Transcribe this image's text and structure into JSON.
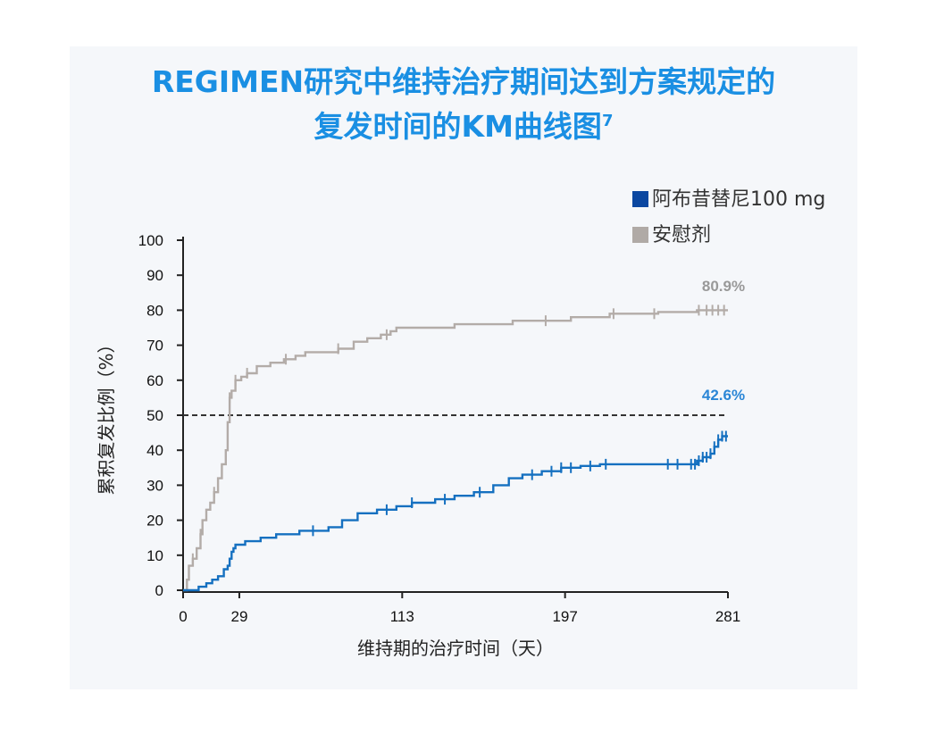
{
  "title": {
    "line1": "REGIMEN研究中维持治疗期间达到方案规定的",
    "line2": "复发时间的KM曲线图",
    "superscript": "7"
  },
  "colors": {
    "accent": "#1a8fe3",
    "series_active": "#1570c0",
    "series_placebo": "#b3aca8",
    "legend_active": "#0b47a1",
    "legend_placebo": "#b0aaa6",
    "placebo_label": "#999999",
    "active_label": "#2a86d6"
  },
  "chart_data": {
    "type": "line",
    "title": "REGIMEN研究中维持治疗期间达到方案规定的复发时间的KM曲线图",
    "xlabel": "维持期的治疗时间（天）",
    "ylabel": "累积复发比例（%）",
    "xlim": [
      0,
      281
    ],
    "ylim": [
      0,
      100
    ],
    "xticks": [
      0,
      29,
      113,
      197,
      281
    ],
    "xtick_labels": [
      "0",
      "29",
      "113",
      "197",
      "281"
    ],
    "yticks": [
      0,
      10,
      20,
      30,
      40,
      50,
      60,
      70,
      80,
      90,
      100
    ],
    "ytick_labels": [
      "0",
      "10",
      "20",
      "30",
      "40",
      "50",
      "60",
      "70",
      "80",
      "90",
      "100"
    ],
    "reference_line": {
      "y": 50,
      "style": "dashed"
    },
    "legend_position": "top-right",
    "series": [
      {
        "name": "阿布昔替尼100 mg",
        "end_label": "42.6%",
        "points": [
          [
            0,
            0
          ],
          [
            5,
            0
          ],
          [
            8,
            1
          ],
          [
            12,
            2
          ],
          [
            15,
            3
          ],
          [
            18,
            4
          ],
          [
            21,
            6
          ],
          [
            23,
            7
          ],
          [
            24,
            9
          ],
          [
            25,
            11
          ],
          [
            26,
            12
          ],
          [
            27,
            13
          ],
          [
            32,
            14
          ],
          [
            40,
            15
          ],
          [
            48,
            16
          ],
          [
            60,
            17
          ],
          [
            70,
            17
          ],
          [
            75,
            18
          ],
          [
            82,
            20
          ],
          [
            90,
            22
          ],
          [
            100,
            23
          ],
          [
            110,
            24
          ],
          [
            118,
            25
          ],
          [
            130,
            26
          ],
          [
            140,
            27
          ],
          [
            150,
            28
          ],
          [
            160,
            30
          ],
          [
            168,
            32
          ],
          [
            175,
            33
          ],
          [
            185,
            34
          ],
          [
            195,
            35
          ],
          [
            205,
            35.5
          ],
          [
            215,
            36
          ],
          [
            230,
            36
          ],
          [
            250,
            36
          ],
          [
            262,
            36
          ],
          [
            265,
            37
          ],
          [
            268,
            38
          ],
          [
            270,
            38
          ],
          [
            272,
            39
          ],
          [
            274,
            41
          ],
          [
            276,
            43
          ],
          [
            278,
            44
          ],
          [
            281,
            44
          ]
        ],
        "censor_x": [
          67,
          105,
          118,
          135,
          153,
          180,
          190,
          195,
          200,
          210,
          218,
          250,
          255,
          262,
          264,
          266,
          268,
          270,
          272,
          274,
          276,
          278,
          280
        ]
      },
      {
        "name": "安慰剂",
        "end_label": "80.9%",
        "points": [
          [
            0,
            0
          ],
          [
            2,
            3
          ],
          [
            3,
            7
          ],
          [
            5,
            9
          ],
          [
            7,
            12
          ],
          [
            9,
            16
          ],
          [
            10,
            20
          ],
          [
            12,
            23
          ],
          [
            14,
            25
          ],
          [
            16,
            28
          ],
          [
            18,
            32
          ],
          [
            20,
            36
          ],
          [
            22,
            40
          ],
          [
            23,
            48
          ],
          [
            24,
            55
          ],
          [
            25,
            57
          ],
          [
            27,
            60
          ],
          [
            30,
            61
          ],
          [
            33,
            62
          ],
          [
            38,
            64
          ],
          [
            45,
            65
          ],
          [
            52,
            66
          ],
          [
            58,
            67
          ],
          [
            63,
            68
          ],
          [
            70,
            68
          ],
          [
            80,
            69
          ],
          [
            88,
            71
          ],
          [
            95,
            72
          ],
          [
            102,
            73
          ],
          [
            107,
            74
          ],
          [
            110,
            75
          ],
          [
            120,
            75
          ],
          [
            140,
            76
          ],
          [
            170,
            77
          ],
          [
            200,
            78
          ],
          [
            220,
            79
          ],
          [
            245,
            79.5
          ],
          [
            265,
            80
          ],
          [
            281,
            80
          ]
        ],
        "censor_x": [
          5,
          9,
          16,
          24,
          27,
          33,
          53,
          80,
          105,
          187,
          222,
          243,
          266,
          270,
          273,
          276,
          279
        ]
      }
    ]
  }
}
